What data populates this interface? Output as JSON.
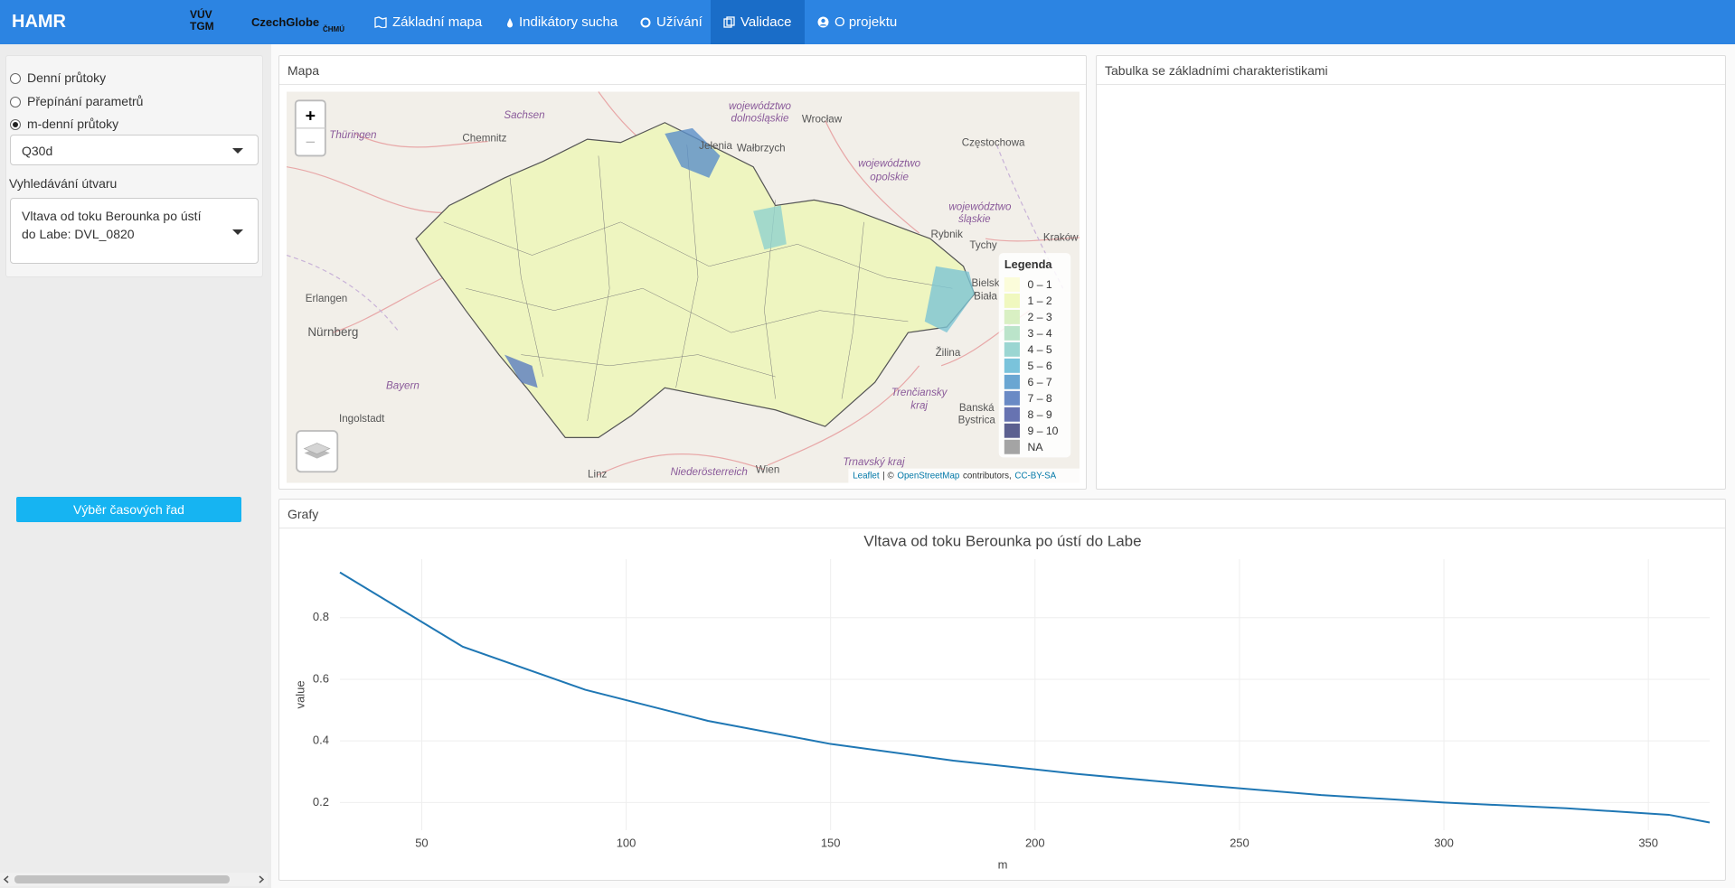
{
  "navbar": {
    "brand": "HAMR",
    "logos": [
      "VÚV TGM",
      "CzechGlobe",
      "ČHMÚ"
    ],
    "items": [
      "Základní mapa",
      "Indikátory sucha",
      "Užívání",
      "Validace",
      "O projektu"
    ]
  },
  "sidebar": {
    "radios": [
      "Denní průtoky",
      "Přepínání parametrů",
      "m-denní průtoky"
    ],
    "parameter": "Q30d",
    "search_label": "Vyhledávání útvaru",
    "search_value": "Vltava od toku Berounka po ústí do Labe: DVL_0820",
    "button": "Výběr časových řad"
  },
  "panels": {
    "map": "Mapa",
    "table": "Tabulka se základními charakteristikami",
    "charts": "Grafy"
  },
  "map": {
    "zoom_in": "+",
    "zoom_out": "−",
    "places": [
      "Sachsen",
      "Thüringen",
      "Chemnitz",
      "województwo",
      "dolnośląskie",
      "Wrocław",
      "Jelenia",
      "Wałbrzych",
      "Częstochowa",
      "województwo",
      "opolskie",
      "województwo",
      "śląskie",
      "Rybnik",
      "Tychy",
      "Kraków",
      "Erlangen",
      "Nürnberg",
      "Bayern",
      "Ingolstadt",
      "Linz",
      "Niederösterreich",
      "Wien",
      "Žilina",
      "Trenčiansky",
      "kraj",
      "Banská",
      "Bystrica",
      "Trnavský kraj",
      "Bielsk",
      "Biała"
    ],
    "attribution": [
      "Leaflet",
      "| ©",
      "OpenStreetMap",
      "contributors,",
      "CC-BY-SA"
    ],
    "legend": {
      "title": "Legenda",
      "items": [
        {
          "label": "0 – 1",
          "color": "#fbfcd6"
        },
        {
          "label": "1 – 2",
          "color": "#eef7b8"
        },
        {
          "label": "2 – 3",
          "color": "#d5eebd"
        },
        {
          "label": "3 – 4",
          "color": "#b4e1c4"
        },
        {
          "label": "4 – 5",
          "color": "#90d2cd"
        },
        {
          "label": "5 – 6",
          "color": "#6cbcd7"
        },
        {
          "label": "6 – 7",
          "color": "#5a9ccd"
        },
        {
          "label": "7 – 8",
          "color": "#5a7dbf"
        },
        {
          "label": "8 – 9",
          "color": "#5664a8"
        },
        {
          "label": "9 – 10",
          "color": "#4a4f84"
        },
        {
          "label": "NA",
          "color": "#9a9a9a"
        }
      ]
    }
  },
  "chart_data": {
    "type": "line",
    "title": "Vltava od toku Berounka po ústí do Labe",
    "x_label": "m",
    "y_label": "value",
    "x": [
      30,
      60,
      90,
      120,
      150,
      180,
      210,
      240,
      270,
      300,
      330,
      355,
      365
    ],
    "values": [
      0.947,
      0.706,
      0.566,
      0.465,
      0.39,
      0.336,
      0.293,
      0.257,
      0.224,
      0.2,
      0.181,
      0.16,
      0.135
    ],
    "color": "#1f77b4",
    "xlim": [
      30,
      365
    ],
    "ylim": [
      0.11,
      0.99
    ],
    "xticks": [
      50,
      100,
      150,
      200,
      250,
      300,
      350
    ],
    "yticks": [
      0.2,
      0.4,
      0.6,
      0.8
    ],
    "grid": true
  }
}
